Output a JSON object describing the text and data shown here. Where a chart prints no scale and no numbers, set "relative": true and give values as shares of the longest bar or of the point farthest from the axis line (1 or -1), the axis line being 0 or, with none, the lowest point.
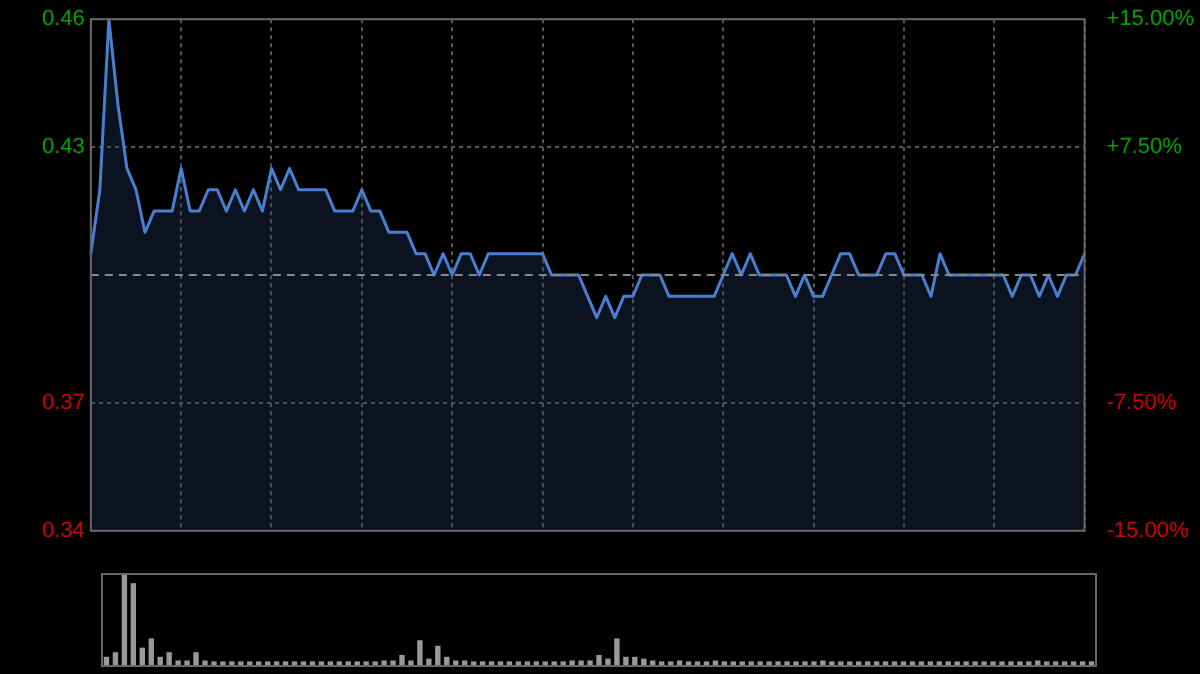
{
  "chart_data": [
    {
      "type": "area",
      "categories": [
        null,
        null,
        null,
        null,
        null,
        null,
        null,
        null,
        null,
        null,
        null,
        null,
        null,
        null,
        null,
        null,
        null,
        null,
        null,
        null,
        null,
        null,
        null,
        null,
        null,
        null,
        null,
        null,
        null,
        null,
        null,
        null,
        null,
        null,
        null,
        null,
        null,
        null,
        null,
        null,
        null,
        null,
        null,
        null,
        null,
        null,
        null,
        null,
        null,
        null,
        null,
        null,
        null,
        null,
        null,
        null,
        null,
        null,
        null,
        null,
        null,
        null,
        null,
        null,
        null,
        null,
        null,
        null,
        null,
        null,
        null,
        null,
        null,
        null,
        null,
        null,
        null,
        null,
        null,
        null,
        null,
        null,
        null,
        null,
        null,
        null,
        null,
        null,
        null,
        null,
        null,
        null,
        null,
        null,
        null,
        null,
        null,
        null,
        null,
        null,
        null,
        null,
        null,
        null,
        null,
        null,
        null,
        null,
        null,
        null,
        null
      ],
      "series": [
        {
          "color": "#4a7fd0",
          "values": [
            0.405,
            0.42,
            0.46,
            0.44,
            0.425,
            0.42,
            0.41,
            0.415,
            0.415,
            0.415,
            0.425,
            0.415,
            0.415,
            0.42,
            0.42,
            0.415,
            0.42,
            0.415,
            0.42,
            0.415,
            0.425,
            0.42,
            0.425,
            0.42,
            0.42,
            0.42,
            0.42,
            0.415,
            0.415,
            0.415,
            0.42,
            0.415,
            0.415,
            0.41,
            0.41,
            0.41,
            0.405,
            0.405,
            0.4,
            0.405,
            0.4,
            0.405,
            0.405,
            0.4,
            0.405,
            0.405,
            0.405,
            0.405,
            0.405,
            0.405,
            0.405,
            0.4,
            0.4,
            0.4,
            0.4,
            0.395,
            0.39,
            0.395,
            0.39,
            0.395,
            0.395,
            0.4,
            0.4,
            0.4,
            0.395,
            0.395,
            0.395,
            0.395,
            0.395,
            0.395,
            0.4,
            0.405,
            0.4,
            0.405,
            0.4,
            0.4,
            0.4,
            0.4,
            0.395,
            0.4,
            0.395,
            0.395,
            0.4,
            0.405,
            0.405,
            0.4,
            0.4,
            0.4,
            0.405,
            0.405,
            0.4,
            0.4,
            0.4,
            0.395,
            0.405,
            0.4,
            0.4,
            0.4,
            0.4,
            0.4,
            0.4,
            0.4,
            0.395,
            0.4,
            0.4,
            0.395,
            0.4,
            0.395,
            0.4,
            0.4,
            0.405
          ]
        }
      ],
      "ylim": [
        0.34,
        0.46
      ],
      "yticks": [
        0.34,
        0.37,
        0.43,
        0.46
      ],
      "y2lim": [
        -15,
        15
      ],
      "y2ticks": [
        {
          "value": -15,
          "label": "-15.00%"
        },
        {
          "value": -7.5,
          "label": "-7.50%"
        },
        {
          "value": 7.5,
          "label": "+7.50%"
        },
        {
          "value": 15,
          "label": "+15.00%"
        }
      ],
      "ref_lines": [
        {
          "axis": "y",
          "value": 0.4,
          "color": "#888888",
          "line_style": "dashed"
        }
      ],
      "grid": true,
      "legend": false,
      "marker": "none",
      "line_style": "solid"
    },
    {
      "type": "bar",
      "relative": true,
      "categories": [
        null,
        null,
        null,
        null,
        null,
        null,
        null,
        null,
        null,
        null,
        null,
        null,
        null,
        null,
        null,
        null,
        null,
        null,
        null,
        null,
        null,
        null,
        null,
        null,
        null,
        null,
        null,
        null,
        null,
        null,
        null,
        null,
        null,
        null,
        null,
        null,
        null,
        null,
        null,
        null,
        null,
        null,
        null,
        null,
        null,
        null,
        null,
        null,
        null,
        null,
        null,
        null,
        null,
        null,
        null,
        null,
        null,
        null,
        null,
        null,
        null,
        null,
        null,
        null,
        null,
        null,
        null,
        null,
        null,
        null,
        null,
        null,
        null,
        null,
        null,
        null,
        null,
        null,
        null,
        null,
        null,
        null,
        null,
        null,
        null,
        null,
        null,
        null,
        null,
        null,
        null,
        null,
        null,
        null,
        null,
        null,
        null,
        null,
        null,
        null,
        null,
        null,
        null,
        null,
        null,
        null,
        null,
        null,
        null,
        null,
        null
      ],
      "series": [
        {
          "color": "#999999",
          "values": [
            0.1,
            0.15,
            1,
            0.9,
            0.2,
            0.3,
            0.1,
            0.15,
            0.06,
            0.06,
            0.15,
            0.06,
            0.05,
            0.05,
            0.05,
            0.05,
            0.05,
            0.05,
            0.05,
            0.05,
            0.05,
            0.05,
            0.05,
            0.05,
            0.05,
            0.05,
            0.05,
            0.05,
            0.05,
            0.05,
            0.05,
            0.06,
            0.06,
            0.12,
            0.06,
            0.28,
            0.08,
            0.22,
            0.1,
            0.06,
            0.06,
            0.05,
            0.05,
            0.05,
            0.05,
            0.05,
            0.05,
            0.05,
            0.05,
            0.05,
            0.05,
            0.05,
            0.06,
            0.06,
            0.06,
            0.12,
            0.08,
            0.3,
            0.1,
            0.1,
            0.08,
            0.06,
            0.05,
            0.05,
            0.06,
            0.05,
            0.05,
            0.05,
            0.06,
            0.05,
            0.05,
            0.05,
            0.05,
            0.05,
            0.05,
            0.05,
            0.05,
            0.05,
            0.05,
            0.05,
            0.06,
            0.05,
            0.05,
            0.05,
            0.05,
            0.05,
            0.05,
            0.05,
            0.05,
            0.05,
            0.05,
            0.05,
            0.05,
            0.05,
            0.05,
            0.05,
            0.05,
            0.05,
            0.05,
            0.05,
            0.05,
            0.05,
            0.05,
            0.05,
            0.06,
            0.05,
            0.05,
            0.05,
            0.05,
            0.05,
            0.05
          ]
        }
      ],
      "grid": false,
      "legend": false
    }
  ]
}
